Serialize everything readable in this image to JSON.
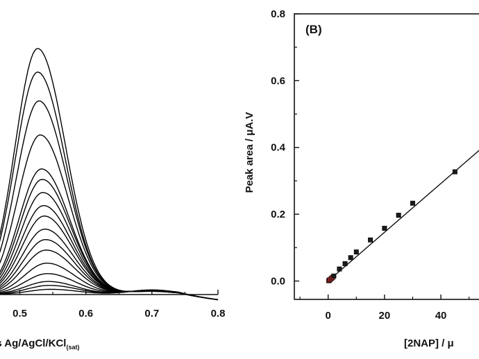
{
  "chart_data": [
    {
      "type": "line",
      "panel": "A",
      "xlabel_visible": "vs Ag/AgCl/KCl",
      "xlabel_subscript": "(sat)",
      "ylabel": "",
      "xlim": [
        0.47,
        0.8
      ],
      "x_ticks": [
        "0.5",
        "0.6",
        "0.7",
        "0.8"
      ],
      "x_tick_values": [
        0.5,
        0.6,
        0.7,
        0.8
      ],
      "peak_potential": 0.527,
      "series": [
        {
          "peak_height": 0.94,
          "peak_x": 0.527
        },
        {
          "peak_height": 0.85,
          "peak_x": 0.527
        },
        {
          "peak_height": 0.74,
          "peak_x": 0.529
        },
        {
          "peak_height": 0.61,
          "peak_x": 0.531
        },
        {
          "peak_height": 0.48,
          "peak_x": 0.533
        },
        {
          "peak_height": 0.44,
          "peak_x": 0.534
        },
        {
          "peak_height": 0.39,
          "peak_x": 0.535
        },
        {
          "peak_height": 0.34,
          "peak_x": 0.536
        },
        {
          "peak_height": 0.3,
          "peak_x": 0.537
        },
        {
          "peak_height": 0.25,
          "peak_x": 0.538
        },
        {
          "peak_height": 0.21,
          "peak_x": 0.539
        },
        {
          "peak_height": 0.17,
          "peak_x": 0.54
        },
        {
          "peak_height": 0.12,
          "peak_x": 0.541
        },
        {
          "peak_height": 0.08,
          "peak_x": 0.542
        },
        {
          "peak_height": 0.05,
          "peak_x": 0.543
        },
        {
          "peak_height": 0.035,
          "peak_x": 0.545
        },
        {
          "peak_height": 0.02,
          "peak_x": 0.547
        }
      ]
    },
    {
      "type": "scatter",
      "panel": "B",
      "title": "(B)",
      "xlabel_visible": "[2NAP] / μ",
      "ylabel": "Peak area / μA.V",
      "xlim": [
        -12,
        56
      ],
      "ylim": [
        -0.055,
        0.8
      ],
      "x_ticks": [
        "0",
        "20",
        "40"
      ],
      "x_tick_values": [
        0,
        20,
        40
      ],
      "y_ticks": [
        "0.0",
        "0.2",
        "0.4",
        "0.6",
        "0.8"
      ],
      "y_tick_values": [
        0.0,
        0.2,
        0.4,
        0.6,
        0.8
      ],
      "points": [
        {
          "x": 0.2,
          "y": 0.001
        },
        {
          "x": 0.5,
          "y": 0.003
        },
        {
          "x": 0.8,
          "y": 0.005
        },
        {
          "x": 1.2,
          "y": 0.008
        },
        {
          "x": 1.6,
          "y": 0.011
        },
        {
          "x": 2.0,
          "y": 0.015
        },
        {
          "x": 4.0,
          "y": 0.036
        },
        {
          "x": 6.0,
          "y": 0.052
        },
        {
          "x": 8.0,
          "y": 0.07
        },
        {
          "x": 10.0,
          "y": 0.087
        },
        {
          "x": 15.0,
          "y": 0.123
        },
        {
          "x": 20.0,
          "y": 0.158
        },
        {
          "x": 25.0,
          "y": 0.197
        },
        {
          "x": 30.0,
          "y": 0.233
        },
        {
          "x": 45.0,
          "y": 0.327
        }
      ],
      "fit_line": {
        "x_start": 0.0,
        "x_end": 56.0,
        "slope": 0.0073,
        "intercept": 0.0
      }
    }
  ],
  "colors": {
    "axis": "#111111",
    "curve": "#000000",
    "marker": "#1a1a1a",
    "marker_tint": "#b03030",
    "background": "#ffffff"
  }
}
